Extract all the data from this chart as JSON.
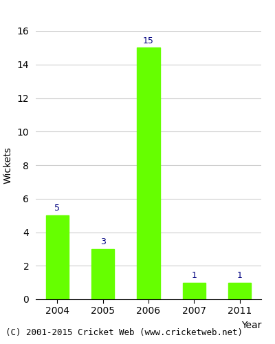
{
  "categories": [
    "2004",
    "2005",
    "2006",
    "2007",
    "2011"
  ],
  "values": [
    5,
    3,
    15,
    1,
    1
  ],
  "bar_color": "#66ff00",
  "bar_edge_color": "#66ff00",
  "label_color": "#000080",
  "xlabel": "Year",
  "ylabel": "Wickets",
  "ylim": [
    0,
    16
  ],
  "yticks": [
    0,
    2,
    4,
    6,
    8,
    10,
    12,
    14,
    16
  ],
  "grid_color": "#cccccc",
  "bg_color": "#ffffff",
  "footnote": "(C) 2001-2015 Cricket Web (www.cricketweb.net)",
  "label_fontsize": 9,
  "axis_fontsize": 10,
  "tick_fontsize": 10,
  "footnote_fontsize": 9
}
